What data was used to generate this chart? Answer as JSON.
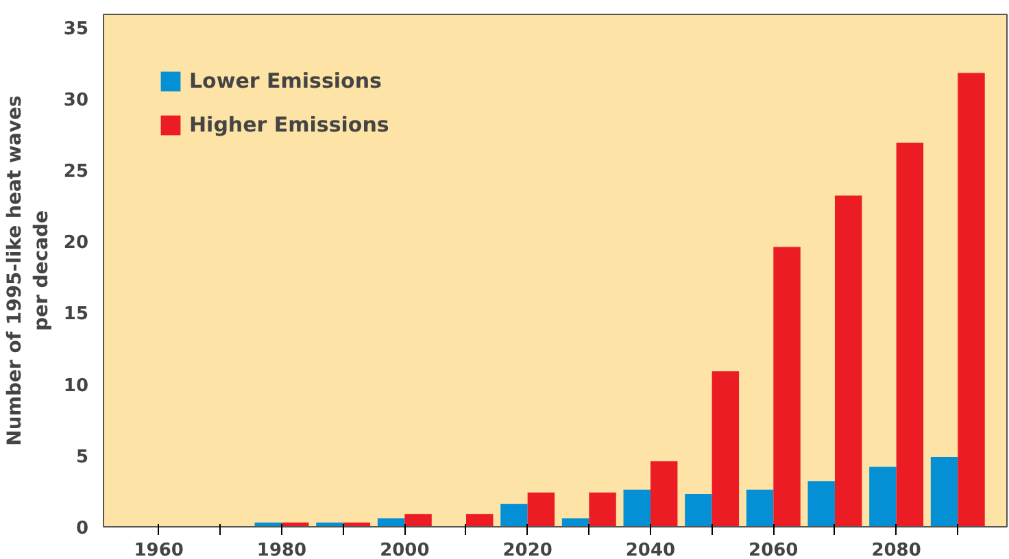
{
  "chart_data": {
    "type": "bar",
    "ylabel": "Number of 1995-like heat waves\nper decade",
    "x": [
      1960,
      1970,
      1980,
      1990,
      2000,
      2010,
      2020,
      2030,
      2040,
      2050,
      2060,
      2070,
      2080,
      2090
    ],
    "series": [
      {
        "name": "Lower Emissions",
        "color": "#0590d6",
        "values": [
          0,
          0,
          0.3,
          0.3,
          0.6,
          0,
          1.6,
          0.6,
          2.6,
          2.3,
          2.6,
          3.2,
          4.2,
          4.9
        ]
      },
      {
        "name": "Higher Emissions",
        "color": "#ec1c24",
        "values": [
          0,
          0,
          0.3,
          0.3,
          0.9,
          0.9,
          2.4,
          2.4,
          4.6,
          10.9,
          19.6,
          23.2,
          26.9,
          31.8
        ]
      }
    ],
    "xlim": [
      1951,
      2098
    ],
    "ylim": [
      0,
      35.9
    ],
    "xticks": [
      1960,
      {
        "value": 1970,
        "label": null
      },
      1980,
      {
        "value": 1990,
        "label": null
      },
      2000,
      {
        "value": 2010,
        "label": null
      },
      2020,
      {
        "value": 2030,
        "label": null
      },
      2040,
      {
        "value": 2050,
        "label": null
      },
      2060,
      {
        "value": 2070,
        "label": null
      },
      2080,
      {
        "value": 2090,
        "label": null
      }
    ],
    "yticks": [
      0,
      5,
      10,
      15,
      20,
      25,
      30,
      35
    ],
    "grid": false,
    "legend": "top left"
  }
}
